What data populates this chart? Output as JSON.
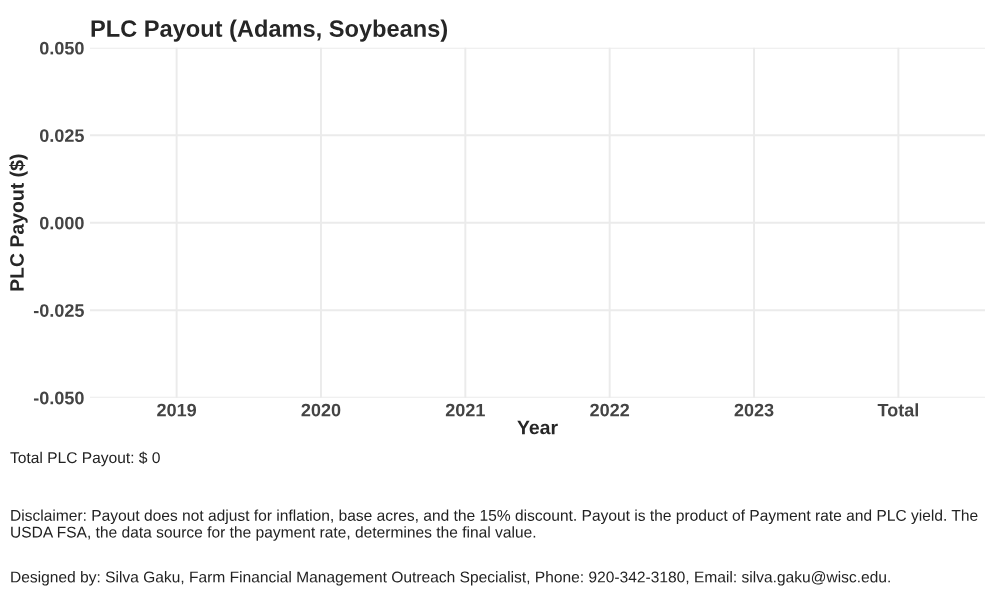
{
  "chart_data": {
    "type": "bar",
    "title": "PLC Payout (Adams, Soybeans)",
    "xlabel": "Year",
    "ylabel": "PLC Payout ($)",
    "categories": [
      "2019",
      "2020",
      "2021",
      "2022",
      "2023",
      "Total"
    ],
    "values": [
      null,
      null,
      null,
      null,
      null,
      null
    ],
    "ylim": [
      -0.05,
      0.05
    ],
    "yticks": [
      {
        "value": -0.05,
        "label": "-0.050"
      },
      {
        "value": -0.025,
        "label": "-0.025"
      },
      {
        "value": 0,
        "label": "0.000"
      },
      {
        "value": 0.025,
        "label": "0.025"
      },
      {
        "value": 0.05,
        "label": "0.050"
      }
    ],
    "grid": true,
    "annotations": [
      "Total PLC Payout: $ 0",
      "Disclaimer: Payout does not adjust for inflation, base acres, and the 15% discount. Payout is the product of Payment rate and PLC yield. The USDA FSA, the data source for the payment rate, determines the final value.",
      "Designed by: Silva Gaku, Farm Financial Management Outreach Specialist, Phone: 920-342-3180, Email: silva.gaku@wisc.edu."
    ]
  }
}
